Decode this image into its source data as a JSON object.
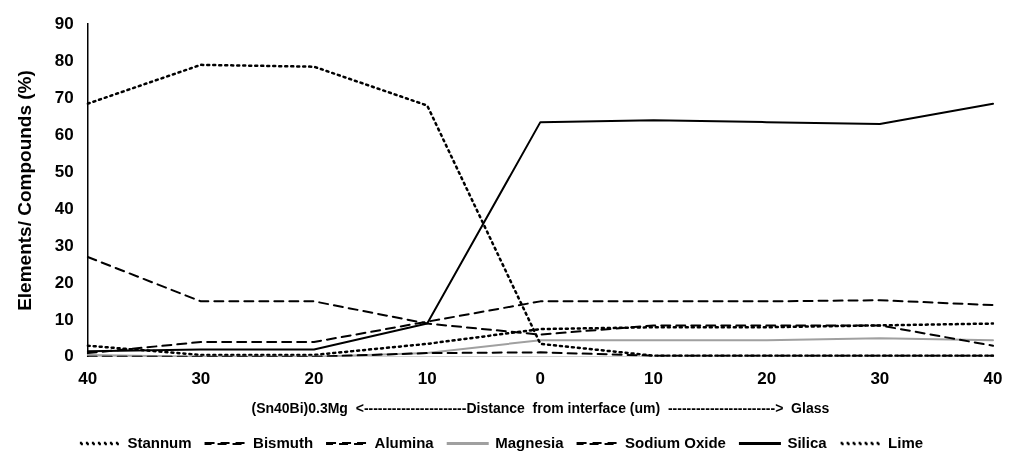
{
  "chart_data": {
    "type": "line",
    "categories": [
      "40",
      "30",
      "20",
      "10",
      "0",
      "10",
      "20",
      "30",
      "40"
    ],
    "xlabel": "(Sn40Bi)0.3Mg  <----------------------Distance  from interface (um)  ----------------------->  Glass",
    "ylabel": "Elements/ Compounds (%)",
    "ylim": [
      0,
      90
    ],
    "yticks": [
      0,
      10,
      20,
      30,
      40,
      50,
      60,
      70,
      80,
      90
    ],
    "grid": false,
    "legend": "bottom",
    "marker": "none",
    "series": [
      {
        "name": "Stannum",
        "color": "#000000",
        "line_style": "dotted",
        "values": [
          68.5,
          79,
          78.5,
          68,
          3.5,
          0.3,
          0.3,
          0.3,
          0.3
        ]
      },
      {
        "name": "Bismuth",
        "color": "#000000",
        "line_style": "dashed",
        "values": [
          27,
          15,
          15,
          9,
          6,
          8.5,
          8.5,
          8.5,
          3
        ]
      },
      {
        "name": "Alumina",
        "color": "#000000",
        "line_style": "dashed",
        "values": [
          0,
          0,
          0,
          1,
          1.2,
          0.3,
          0.3,
          0.3,
          0.3
        ]
      },
      {
        "name": "Magnesia",
        "color": "#a0a0a0",
        "line_style": "solid",
        "values": [
          0.5,
          0,
          0,
          1,
          4.5,
          4.5,
          4.5,
          5,
          4.5
        ]
      },
      {
        "name": "Sodium Oxide",
        "color": "#000000",
        "line_style": "dashed",
        "values": [
          1,
          4,
          4,
          9.5,
          15,
          15,
          15,
          15.3,
          14
        ]
      },
      {
        "name": "Silica",
        "color": "#000000",
        "line_style": "solid",
        "values": [
          1.5,
          2,
          2,
          9,
          63.5,
          64,
          63.5,
          63,
          68.5
        ]
      },
      {
        "name": "Lime",
        "color": "#000000",
        "line_style": "dotted",
        "values": [
          3,
          0.5,
          0.5,
          3.5,
          7.5,
          8,
          8,
          8.5,
          9
        ]
      }
    ]
  }
}
